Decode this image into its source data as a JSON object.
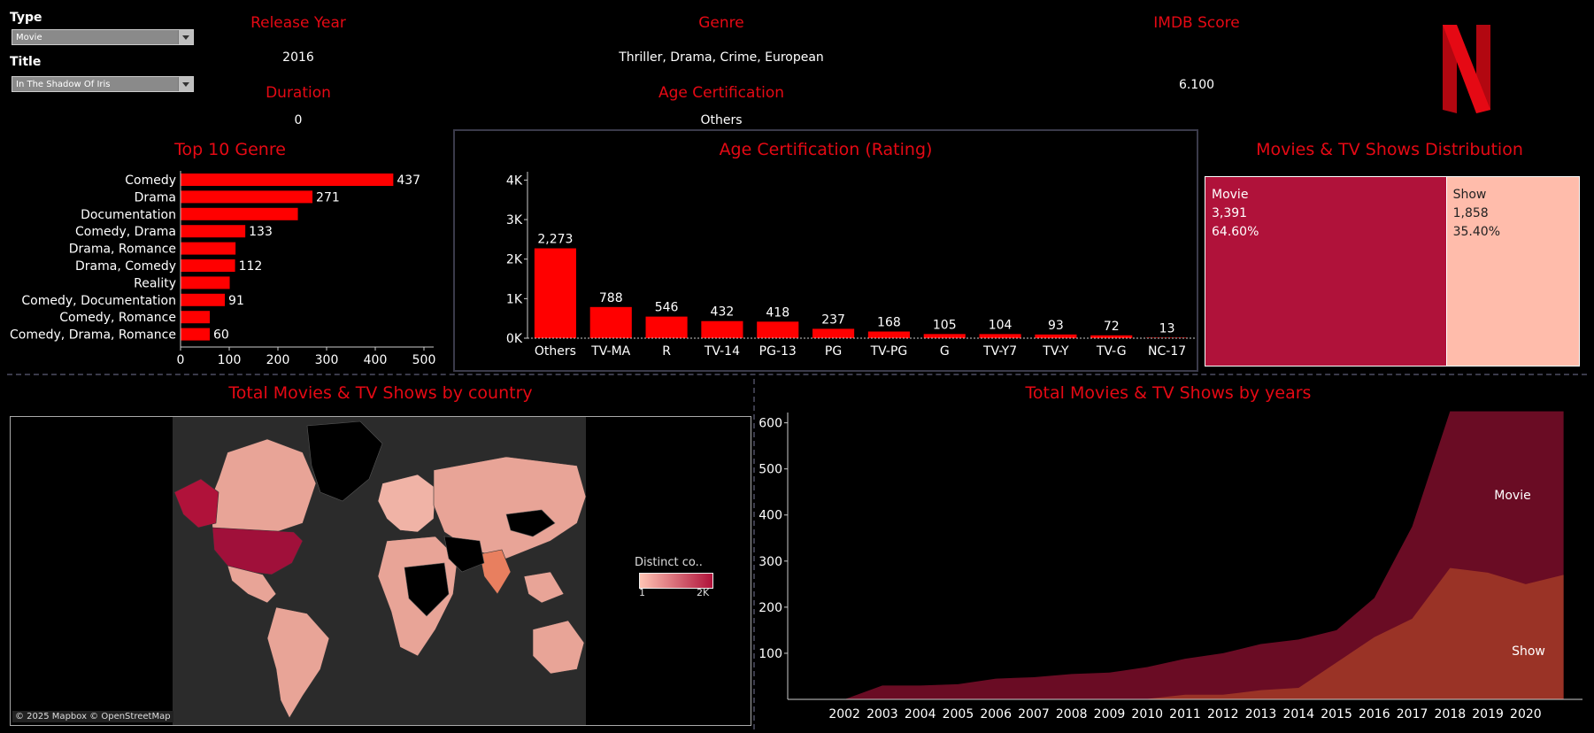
{
  "filters": {
    "type_label": "Type",
    "type_value": "Movie",
    "title_label": "Title",
    "title_value": "In The Shadow Of Iris"
  },
  "kpis": {
    "release_year_label": "Release Year",
    "release_year_value": "2016",
    "duration_label": "Duration",
    "duration_value": "0",
    "genre_label": "Genre",
    "genre_value": "Thriller, Drama, Crime, European",
    "age_cert_label": "Age Certification",
    "age_cert_value": "Others",
    "imdb_label": "IMDB  Score",
    "imdb_value": "6.100"
  },
  "colors": {
    "accent": "#e50914",
    "bar": "#ff0000",
    "movie": "#b0123a",
    "show": "#ffbcab",
    "area_movie": "#6a0c24",
    "area_show": "#9a3326"
  },
  "top_genre": {
    "title": "Top 10 Genre",
    "chart_data": {
      "type": "bar",
      "orientation": "horizontal",
      "categories": [
        "Comedy",
        "Drama",
        "Documentation",
        "Comedy, Drama",
        "Drama, Romance",
        "Drama, Comedy",
        "Reality",
        "Comedy, Documentation",
        "Comedy, Romance",
        "Comedy, Drama, Romance"
      ],
      "values": [
        437,
        271,
        241,
        133,
        113,
        112,
        101,
        91,
        60,
        60
      ],
      "labels": [
        "437",
        "271",
        "",
        "133",
        "",
        "112",
        "",
        "91",
        "",
        "60"
      ],
      "xlim": [
        0,
        520
      ],
      "ticks": [
        "0",
        "100",
        "200",
        "300",
        "400",
        "500"
      ],
      "tick_values": [
        0,
        100,
        200,
        300,
        400,
        500
      ]
    }
  },
  "age_cert": {
    "title": "Age Certification (Rating)",
    "chart_data": {
      "type": "bar",
      "categories": [
        "Others",
        "TV-MA",
        "R",
        "TV-14",
        "PG-13",
        "PG",
        "TV-PG",
        "G",
        "TV-Y7",
        "TV-Y",
        "TV-G",
        "NC-17"
      ],
      "values": [
        2273,
        788,
        546,
        432,
        418,
        237,
        168,
        105,
        104,
        93,
        72,
        13
      ],
      "labels": [
        "2,273",
        "788",
        "546",
        "432",
        "418",
        "237",
        "168",
        "105",
        "104",
        "93",
        "72",
        "13"
      ],
      "ylim": [
        0,
        4300
      ],
      "ticks": [
        "0K",
        "1K",
        "2K",
        "3K",
        "4K"
      ],
      "tick_values": [
        0,
        1000,
        2000,
        3000,
        4000
      ]
    }
  },
  "distribution": {
    "title": "Movies & TV Shows Distribution",
    "chart_data": {
      "type": "treemap",
      "items": [
        {
          "name": "Movie",
          "count": "3,391",
          "pct": "64.60%",
          "value": 3391
        },
        {
          "name": "Show",
          "count": "1,858",
          "pct": "35.40%",
          "value": 1858
        }
      ]
    }
  },
  "map": {
    "title": "Total Movies & TV Shows by country",
    "legend_title": "Distinct co..",
    "legend_min": "1",
    "legend_max": "2K",
    "attribution": "© 2025 Mapbox © OpenStreetMap"
  },
  "years": {
    "title": "Total Movies & TV Shows by years",
    "chart_data": {
      "type": "area",
      "x": [
        2001,
        2002,
        2003,
        2004,
        2005,
        2006,
        2007,
        2008,
        2009,
        2010,
        2011,
        2012,
        2013,
        2014,
        2015,
        2016,
        2017,
        2018,
        2019,
        2020,
        2021
      ],
      "series": [
        {
          "name": "Show",
          "values": [
            0,
            0,
            0,
            0,
            0,
            0,
            1,
            1,
            1,
            1,
            10,
            10,
            20,
            25,
            80,
            135,
            175,
            285,
            275,
            250,
            270
          ]
        },
        {
          "name": "Movie",
          "values": [
            0,
            0,
            30,
            30,
            33,
            45,
            48,
            55,
            58,
            70,
            88,
            100,
            120,
            130,
            150,
            220,
            375,
            625,
            625,
            625,
            625
          ]
        }
      ],
      "labels": [
        "",
        "2002",
        "2003",
        "2004",
        "2005",
        "2006",
        "2007",
        "2008",
        "2009",
        "2010",
        "2011",
        "2012",
        "2013",
        "2014",
        "2015",
        "2016",
        "2017",
        "2018",
        "2019",
        "2020",
        ""
      ],
      "ylim": [
        0,
        630
      ],
      "ticks": [
        "100",
        "200",
        "300",
        "400",
        "500",
        "600"
      ],
      "tick_values": [
        100,
        200,
        300,
        400,
        500,
        600
      ]
    }
  }
}
